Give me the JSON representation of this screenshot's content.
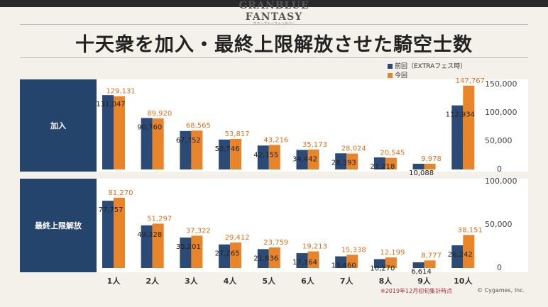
{
  "logo": {
    "main": "GRANBLUE FANTASY",
    "sub": "グランブルーファンタジー"
  },
  "title": "十天衆を加入・最終上限解放させた騎空士数",
  "legend": {
    "prev": "前回（EXTRAフェス時）",
    "curr": "今回"
  },
  "colors": {
    "prev": "#2b4a75",
    "curr": "#e8842a",
    "label_bg": "#24446c"
  },
  "chart_data": [
    {
      "type": "bar",
      "title": "加入",
      "categories": [
        "1人",
        "2人",
        "3人",
        "4人",
        "5人",
        "6人",
        "7人",
        "8人",
        "9人",
        "10人"
      ],
      "series": [
        {
          "name": "前回（EXTRAフェス時）",
          "values": [
            131047,
            90760,
            67752,
            52746,
            42155,
            34442,
            28393,
            21218,
            10088,
            112934
          ],
          "labels": [
            "131,047",
            "90,760",
            "67,752",
            "52,746",
            "42,155",
            "34,442",
            "28,393",
            "21,218",
            "10,088",
            "112,934"
          ]
        },
        {
          "name": "今回",
          "values": [
            129131,
            89920,
            68565,
            53817,
            43216,
            35173,
            28024,
            20545,
            9978,
            147767
          ],
          "labels": [
            "129,131",
            "89,920",
            "68,565",
            "53,817",
            "43,216",
            "35,173",
            "28,024",
            "20,545",
            "9,978",
            "147,767"
          ]
        }
      ],
      "ylim": [
        0,
        150000
      ],
      "yticks": [
        "0",
        "50,000",
        "100,000",
        "150,000"
      ]
    },
    {
      "type": "bar",
      "title": "最終上限解放",
      "categories": [
        "1人",
        "2人",
        "3人",
        "4人",
        "5人",
        "6人",
        "7人",
        "8人",
        "9人",
        "10人"
      ],
      "series": [
        {
          "name": "前回（EXTRAフェス時）",
          "values": [
            77757,
            49328,
            35201,
            27265,
            21836,
            17164,
            13460,
            10270,
            6614,
            26242
          ],
          "labels": [
            "77,757",
            "49,328",
            "35,201",
            "27,265",
            "21,836",
            "17,164",
            "13,460",
            "10,270",
            "6,614",
            "26,242"
          ]
        },
        {
          "name": "今回",
          "values": [
            81270,
            51297,
            37322,
            29412,
            23759,
            19213,
            15338,
            12199,
            8777,
            38151
          ],
          "labels": [
            "81,270",
            "51,297",
            "37,322",
            "29,412",
            "23,759",
            "19,213",
            "15,338",
            "12,199",
            "8,777",
            "38,151"
          ]
        }
      ],
      "ylim": [
        0,
        100000
      ],
      "yticks": [
        "0",
        "50,000",
        "100,000"
      ]
    }
  ],
  "footer": "※2019年12月初旬集計時点",
  "copyright": "© Cygames, Inc."
}
